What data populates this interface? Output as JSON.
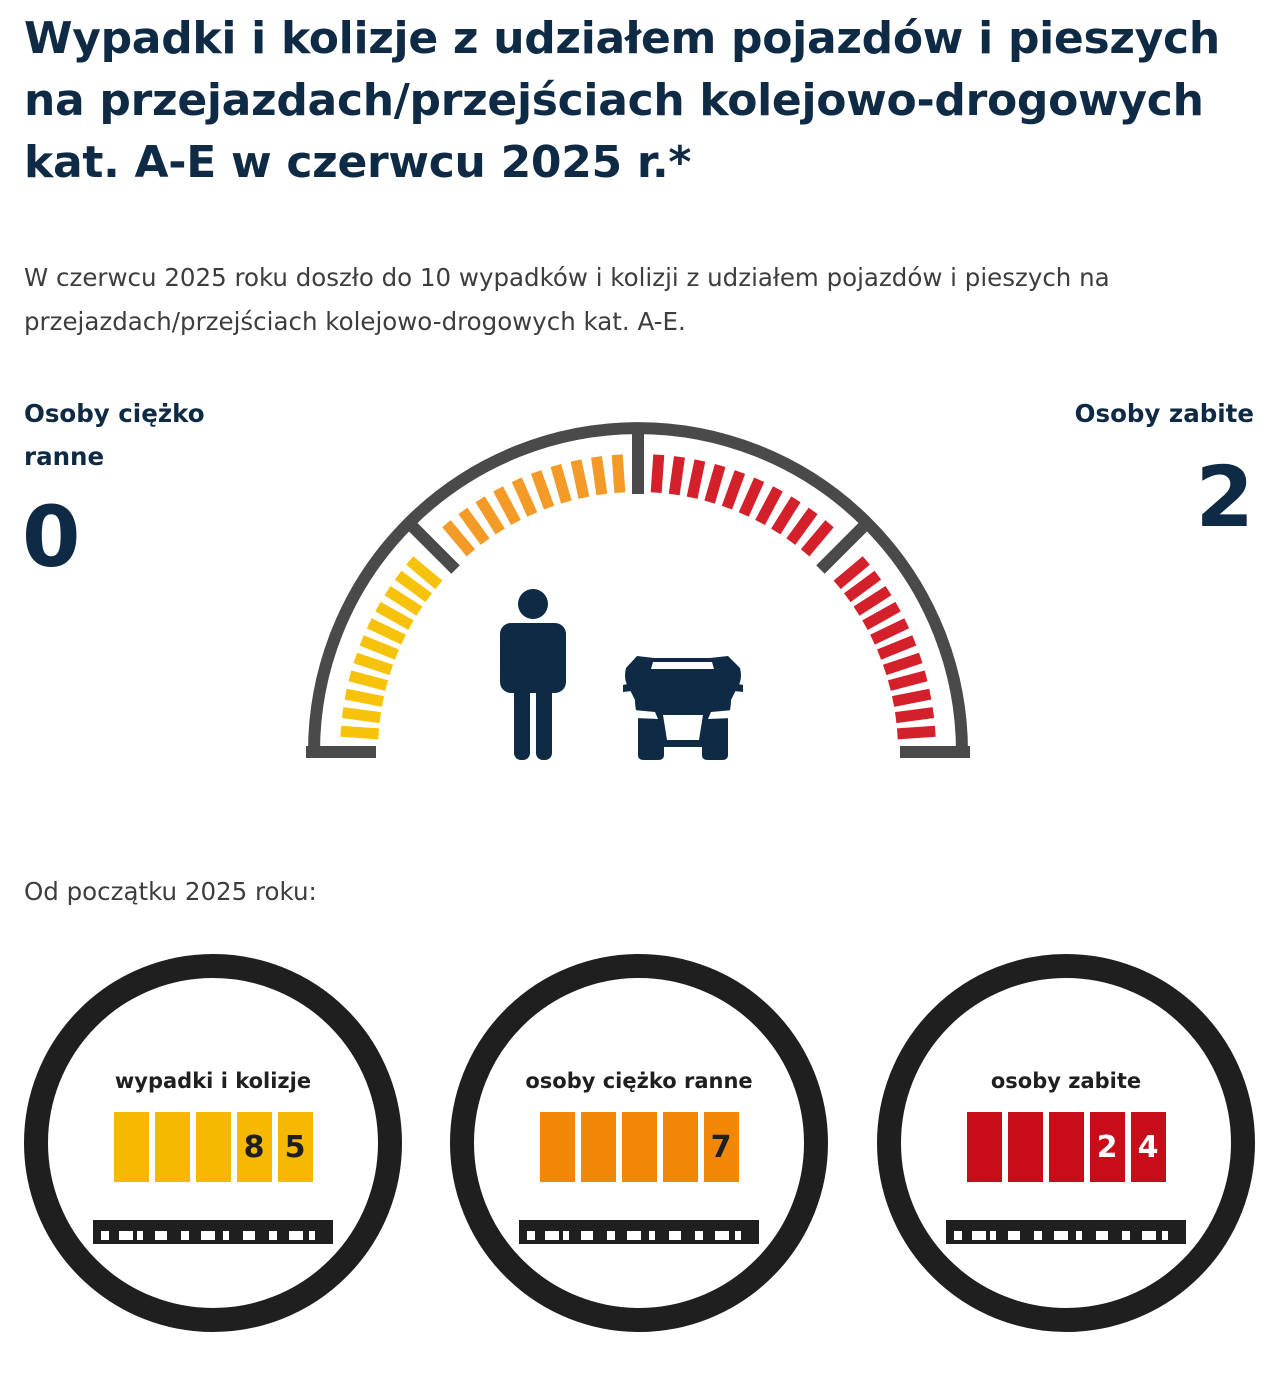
{
  "header": {
    "title": "Wypadki i kolizje z udziałem pojazdów i pieszych na przejazdach/przejściach kolejowo-drogowych kat. A-E w czerwcu 2025 r.*",
    "lead": "W czerwcu 2025 roku doszło do 10 wypadków i kolizji z udziałem pojazdów i pieszych na przejazdach/przejściach kolejowo-drogowych kat. A-E."
  },
  "month_stats": {
    "seriously_injured": {
      "label": "Osoby ciężko ranne",
      "value": "0"
    },
    "killed": {
      "label": "Osoby zabite",
      "value": "2"
    }
  },
  "gauge": {
    "icons": [
      "person-icon",
      "car-icon"
    ],
    "colors": {
      "frame": "#4a4a4a",
      "yellow": "#f6c20a",
      "orange": "#f39a27",
      "red": "#d3202a",
      "icon": "#0e2a45"
    }
  },
  "year_to_date": {
    "label": "Od początku 2025 roku:",
    "counters": [
      {
        "title": "wypadki i kolizje",
        "digits": [
          "",
          "",
          "",
          "8",
          "5"
        ],
        "color": "#f6b800",
        "text_color": "#1f1f1f"
      },
      {
        "title": "osoby ciężko ranne",
        "digits": [
          "",
          "",
          "",
          "",
          "7"
        ],
        "color": "#f28705",
        "text_color": "#1f1f1f"
      },
      {
        "title": "osoby zabite",
        "digits": [
          "",
          "",
          "",
          "2",
          "4"
        ],
        "color": "#c70d19",
        "text_color": "#ffffff"
      }
    ]
  }
}
